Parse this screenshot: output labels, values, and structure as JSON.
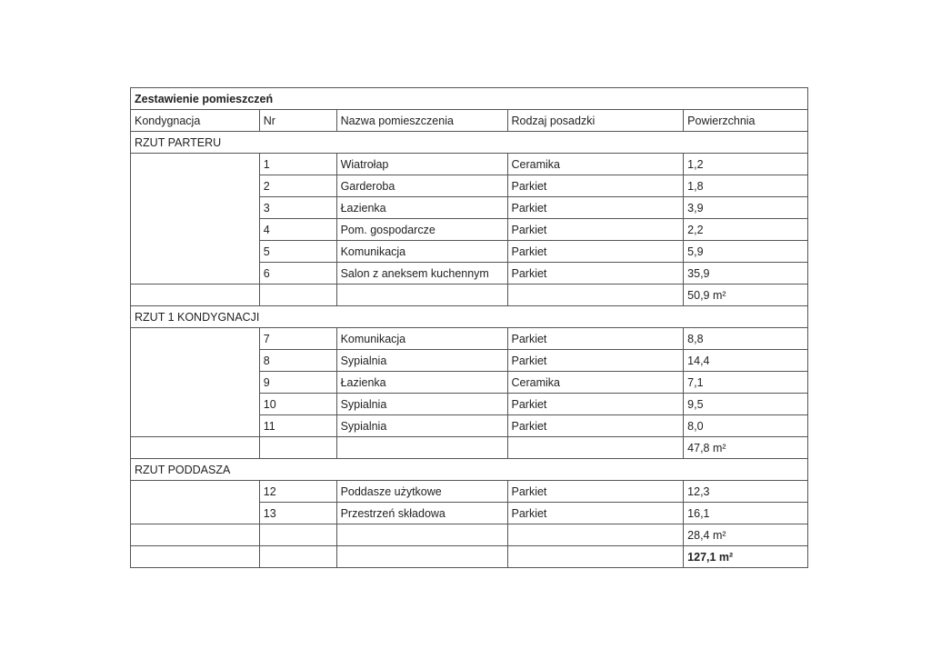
{
  "title": "Zestawienie pomieszczeń",
  "headers": [
    "Kondygnacja",
    "Nr",
    "Nazwa pomieszczenia",
    "Rodzaj posadzki",
    "Powierzchnia"
  ],
  "sections": [
    {
      "name": "RZUT PARTERU",
      "rows": [
        [
          "1",
          "Wiatrołap",
          "Ceramika",
          "1,2"
        ],
        [
          "2",
          "Garderoba",
          "Parkiet",
          "1,8"
        ],
        [
          "3",
          "Łazienka",
          "Parkiet",
          "3,9"
        ],
        [
          "4",
          "Pom. gospodarcze",
          "Parkiet",
          "2,2"
        ],
        [
          "5",
          "Komunikacja",
          "Parkiet",
          "5,9"
        ],
        [
          "6",
          "Salon z aneksem kuchennym",
          "Parkiet",
          "35,9"
        ]
      ],
      "subtotal": "50,9 m²"
    },
    {
      "name": "RZUT 1 KONDYGNACJI",
      "rows": [
        [
          "7",
          "Komunikacja",
          "Parkiet",
          "8,8"
        ],
        [
          "8",
          "Sypialnia",
          "Parkiet",
          "14,4"
        ],
        [
          "9",
          "Łazienka",
          "Ceramika",
          "7,1"
        ],
        [
          "10",
          "Sypialnia",
          "Parkiet",
          "9,5"
        ],
        [
          "11",
          "Sypialnia",
          "Parkiet",
          "8,0"
        ]
      ],
      "subtotal": "47,8 m²"
    },
    {
      "name": "RZUT PODDASZA",
      "rows": [
        [
          "12",
          "Poddasze użytkowe",
          "Parkiet",
          "12,3"
        ],
        [
          "13",
          "Przestrzeń składowa",
          "Parkiet",
          "16,1"
        ]
      ],
      "subtotal": "28,4 m²"
    }
  ],
  "total": "127,1 m²"
}
